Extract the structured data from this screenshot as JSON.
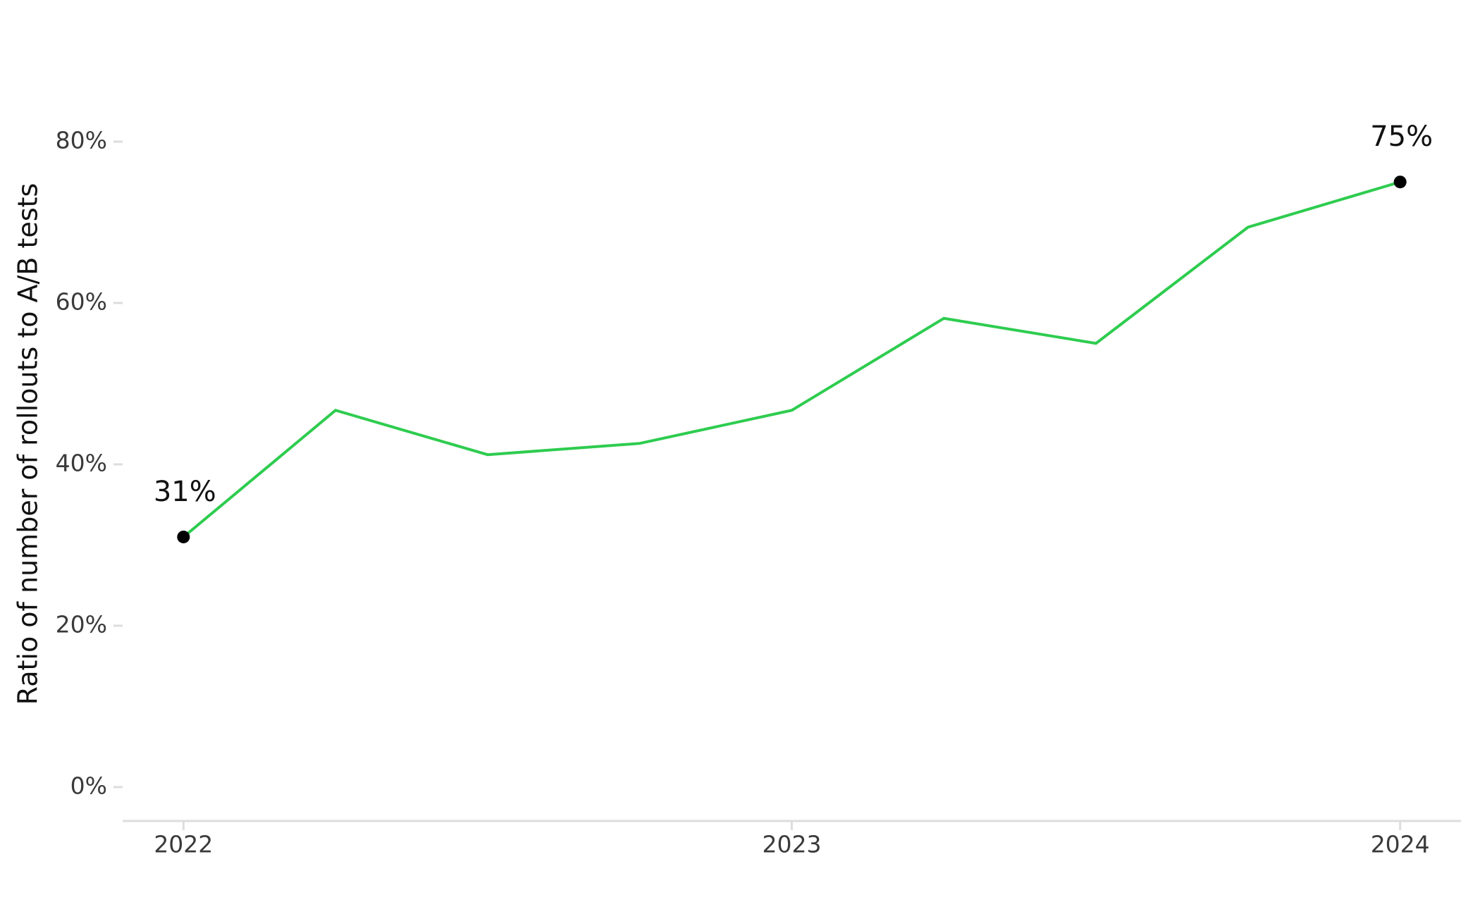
{
  "chart_data": {
    "type": "line",
    "y_label": "Ratio of number of rollouts to A/B tests",
    "x": [
      2022,
      2022.25,
      2022.5,
      2022.75,
      2023,
      2023.25,
      2023.5,
      2023.75,
      2024
    ],
    "series": [
      {
        "color": "#2ecc4f",
        "values": [
          31,
          46.7,
          41.2,
          42.6,
          46.7,
          58.1,
          55.0,
          69.4,
          75
        ],
        "value_labels": [
          "31%",
          null,
          null,
          null,
          null,
          null,
          null,
          null,
          "75%"
        ]
      }
    ],
    "xlim": [
      2021.9,
      2024.1
    ],
    "xticks": [
      2022,
      2023,
      2024
    ],
    "ylim": [
      -4.2,
      90
    ],
    "yticks": [
      {
        "value": 0,
        "label": "0%"
      },
      {
        "value": 20,
        "label": "20%"
      },
      {
        "value": 40,
        "label": "40%"
      },
      {
        "value": 60,
        "label": "60%"
      },
      {
        "value": 80,
        "label": "80%"
      }
    ],
    "grid": false
  }
}
